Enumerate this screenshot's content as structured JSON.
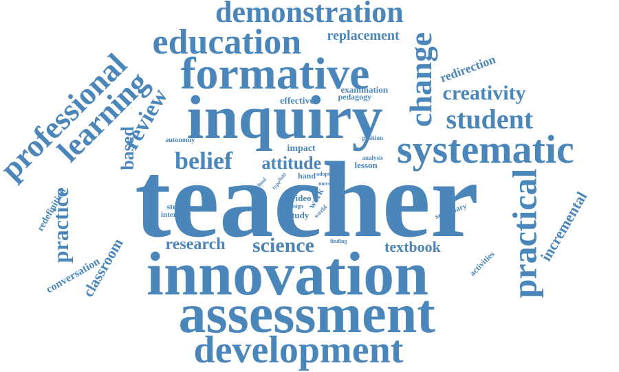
{
  "color": "#4a86ba",
  "words": [
    {
      "id": "teacher",
      "text": "teacher"
    },
    {
      "id": "innovation",
      "text": "innovation"
    },
    {
      "id": "assessment",
      "text": "assessment"
    },
    {
      "id": "inquiry",
      "text": "inquiry"
    },
    {
      "id": "formative",
      "text": "formative"
    },
    {
      "id": "education",
      "text": "education"
    },
    {
      "id": "demonstration",
      "text": "demonstration"
    },
    {
      "id": "development",
      "text": "development"
    },
    {
      "id": "systematic",
      "text": "systematic"
    },
    {
      "id": "practical",
      "text": "practical"
    },
    {
      "id": "professional",
      "text": "professional"
    },
    {
      "id": "learning",
      "text": "learning"
    },
    {
      "id": "change",
      "text": "change"
    },
    {
      "id": "student",
      "text": "student"
    },
    {
      "id": "creativity",
      "text": "creativity"
    },
    {
      "id": "belief",
      "text": "belief"
    },
    {
      "id": "science",
      "text": "science"
    },
    {
      "id": "research",
      "text": "research"
    },
    {
      "id": "attitude",
      "text": "attitude"
    },
    {
      "id": "practice",
      "text": "practice"
    },
    {
      "id": "classroom",
      "text": "classroom"
    },
    {
      "id": "review",
      "text": "review"
    },
    {
      "id": "based",
      "text": "based"
    },
    {
      "id": "incremental",
      "text": "incremental"
    },
    {
      "id": "textbook",
      "text": "textbook"
    },
    {
      "id": "replacement",
      "text": "replacement"
    },
    {
      "id": "redirection",
      "text": "redirection"
    },
    {
      "id": "conversation",
      "text": "conversation"
    },
    {
      "id": "redefinition",
      "text": "redefinition"
    },
    {
      "id": "impact",
      "text": "impact"
    },
    {
      "id": "effective",
      "text": "effective"
    },
    {
      "id": "examination",
      "text": "examination"
    },
    {
      "id": "pedagogy",
      "text": "pedagogy"
    },
    {
      "id": "lesson",
      "text": "lesson"
    },
    {
      "id": "hand",
      "text": "hand"
    },
    {
      "id": "video",
      "text": "video"
    },
    {
      "id": "study",
      "text": "study"
    },
    {
      "id": "work",
      "text": "work"
    },
    {
      "id": "studies",
      "text": "studies"
    },
    {
      "id": "interview",
      "text": "interview"
    },
    {
      "id": "autonomy",
      "text": "autonomy"
    },
    {
      "id": "secondary",
      "text": "secondary"
    },
    {
      "id": "activities",
      "text": "activities"
    },
    {
      "id": "position",
      "text": "position"
    },
    {
      "id": "analysis",
      "text": "analysis"
    },
    {
      "id": "adopt",
      "text": "adopt"
    },
    {
      "id": "more",
      "text": "more"
    },
    {
      "id": "design",
      "text": "design"
    },
    {
      "id": "world",
      "text": "world"
    },
    {
      "id": "school",
      "text": "school"
    },
    {
      "id": "type",
      "text": "type"
    },
    {
      "id": "field",
      "text": "field"
    },
    {
      "id": "finding",
      "text": "finding"
    }
  ]
}
